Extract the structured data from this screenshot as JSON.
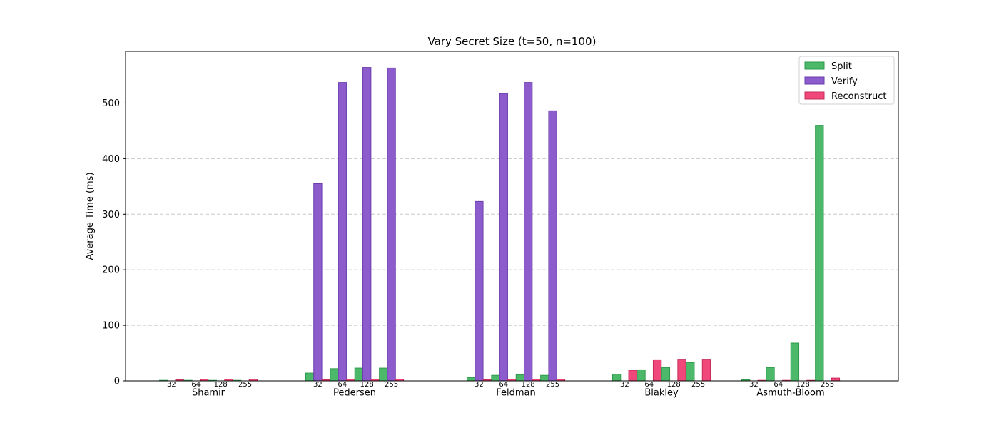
{
  "chart_data": {
    "type": "bar",
    "title": "Vary Secret Size (t=50, n=100)",
    "xlabel": "",
    "ylabel": "Average Time (ms)",
    "ylim": [
      0,
      593
    ],
    "yticks": [
      0,
      100,
      200,
      300,
      400,
      500
    ],
    "grid": "y-dashed",
    "legend_position": "top-right",
    "groups": [
      "Shamir",
      "Pedersen",
      "Feldman",
      "Blakley",
      "Asmuth-Bloom"
    ],
    "secret_sizes": [
      "32",
      "64",
      "128",
      "255"
    ],
    "series": [
      {
        "name": "Split",
        "color": "#4cb86a",
        "edge": "#2e9a4a",
        "values": [
          [
            1,
            1,
            1,
            1
          ],
          [
            14,
            22,
            23,
            23
          ],
          [
            6,
            10,
            11,
            10
          ],
          [
            12,
            20,
            24,
            33
          ],
          [
            2,
            24,
            68,
            460
          ]
        ]
      },
      {
        "name": "Verify",
        "color": "#8c5ccc",
        "edge": "#6a3cae",
        "values": [
          [
            0,
            0,
            0,
            0
          ],
          [
            355,
            537,
            564,
            563
          ],
          [
            323,
            517,
            537,
            486
          ],
          [
            0,
            0,
            0,
            0
          ],
          [
            0,
            0,
            0,
            0
          ]
        ]
      },
      {
        "name": "Reconstruct",
        "color": "#f0487a",
        "edge": "#c82c5a",
        "values": [
          [
            2,
            3,
            3,
            3
          ],
          [
            2,
            3,
            3,
            3
          ],
          [
            2,
            3,
            3,
            3
          ],
          [
            19,
            38,
            39,
            39
          ],
          [
            1,
            1,
            1,
            5
          ]
        ]
      }
    ]
  }
}
